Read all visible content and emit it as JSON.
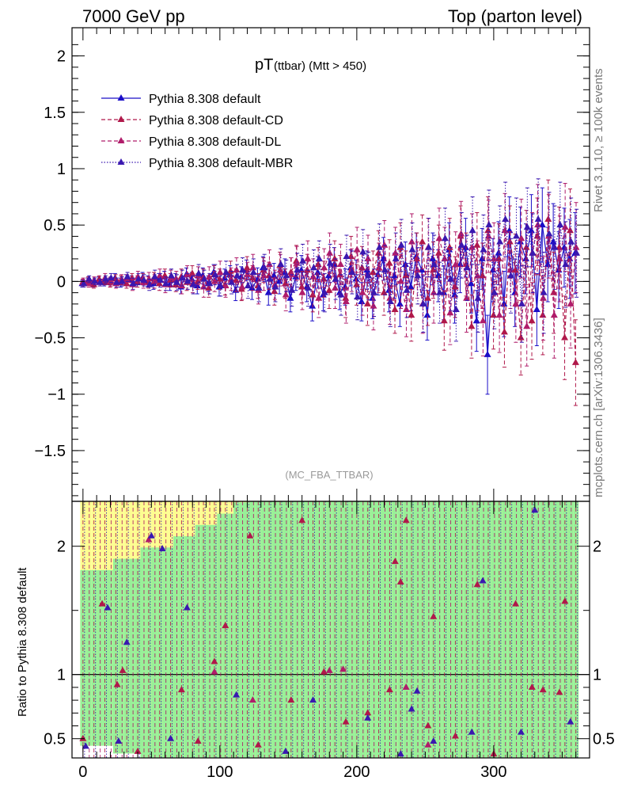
{
  "header": {
    "left": "7000 GeV pp",
    "right": "Top (parton level)"
  },
  "side_text": {
    "rivet": "Rivet 3.1.10, ≥ 100k events",
    "mcplots": "mcplots.cern.ch [arXiv:1306.3436]"
  },
  "colors": {
    "default": "#1a0dc8",
    "cd": "#b0184a",
    "dl": "#b01c6a",
    "mbr": "#3a18b0",
    "band_green": "#98f098",
    "band_yellow": "#fdfd90"
  },
  "chart_data": [
    {
      "type": "line",
      "title_main": "pT",
      "title_sub": "(ttbar) (Mtt > 450)",
      "watermark": "(MC_FBA_TTBAR)",
      "xlabel": "",
      "ylabel": "",
      "xlim": [
        -8,
        370
      ],
      "ylim": [
        -1.95,
        2.25
      ],
      "yticks": [
        -1.5,
        -1,
        -0.5,
        0,
        0.5,
        1,
        1.5,
        2
      ],
      "ytick_labels": [
        "−1.5",
        "−1",
        "−0.5",
        "0",
        "0.5",
        "1",
        "1.5",
        "2"
      ],
      "legend_position": "top-left",
      "x": [
        0,
        4,
        8,
        12,
        16,
        20,
        24,
        28,
        32,
        36,
        40,
        44,
        48,
        52,
        56,
        60,
        64,
        68,
        72,
        76,
        80,
        84,
        88,
        92,
        96,
        100,
        104,
        108,
        112,
        116,
        120,
        124,
        128,
        132,
        136,
        140,
        144,
        148,
        152,
        156,
        160,
        164,
        168,
        172,
        176,
        180,
        184,
        188,
        192,
        196,
        200,
        204,
        208,
        212,
        216,
        220,
        224,
        228,
        232,
        236,
        240,
        244,
        248,
        252,
        256,
        260,
        264,
        268,
        272,
        276,
        280,
        284,
        288,
        292,
        296,
        300,
        304,
        308,
        312,
        316,
        320,
        324,
        328,
        332,
        336,
        340,
        344,
        348,
        352,
        356,
        360
      ],
      "series": [
        {
          "name": "Pythia 8.308 default",
          "style": "solid",
          "values": [
            -0.02,
            0.0,
            -0.02,
            0.01,
            -0.01,
            0.0,
            0.03,
            -0.01,
            0.02,
            0.01,
            -0.01,
            0.03,
            0.0,
            -0.02,
            0.02,
            0.04,
            -0.03,
            0.01,
            -0.05,
            0.06,
            0.02,
            -0.04,
            0.05,
            -0.02,
            0.08,
            -0.05,
            0.03,
            0.06,
            -0.08,
            0.04,
            0.1,
            -0.06,
            0.02,
            0.12,
            -0.1,
            0.05,
            0.0,
            0.08,
            -0.15,
            0.04,
            0.1,
            -0.05,
            -0.22,
            0.08,
            -0.12,
            0.05,
            0.15,
            -0.1,
            -0.05,
            0.12,
            0.02,
            -0.18,
            0.1,
            -0.15,
            0.06,
            0.2,
            -0.08,
            0.05,
            -0.2,
            0.15,
            -0.05,
            0.22,
            0.1,
            -0.3,
            0.2,
            0.05,
            -0.1,
            0.28,
            -0.12,
            0.15,
            0.3,
            -0.02,
            -0.35,
            0.2,
            -0.65,
            0.1,
            0.25,
            -0.2,
            0.45,
            -0.1,
            0.35,
            0.2,
            0.45,
            -0.25,
            0.5,
            0.15,
            0.35,
            0.1,
            0.3,
            0.2,
            0.25
          ],
          "errors": [
            0.03,
            0.03,
            0.03,
            0.03,
            0.03,
            0.03,
            0.04,
            0.04,
            0.04,
            0.04,
            0.04,
            0.05,
            0.05,
            0.05,
            0.05,
            0.05,
            0.05,
            0.06,
            0.06,
            0.06,
            0.06,
            0.07,
            0.07,
            0.07,
            0.07,
            0.08,
            0.08,
            0.08,
            0.09,
            0.09,
            0.09,
            0.1,
            0.1,
            0.1,
            0.11,
            0.11,
            0.11,
            0.12,
            0.12,
            0.12,
            0.13,
            0.13,
            0.13,
            0.14,
            0.14,
            0.15,
            0.15,
            0.15,
            0.16,
            0.16,
            0.17,
            0.17,
            0.17,
            0.18,
            0.18,
            0.19,
            0.19,
            0.2,
            0.2,
            0.2,
            0.21,
            0.21,
            0.22,
            0.22,
            0.23,
            0.23,
            0.24,
            0.24,
            0.25,
            0.25,
            0.26,
            0.26,
            0.27,
            0.27,
            0.35,
            0.28,
            0.28,
            0.29,
            0.3,
            0.3,
            0.31,
            0.31,
            0.32,
            0.32,
            0.33,
            0.33,
            0.34,
            0.34,
            0.35,
            0.35,
            0.36
          ]
        },
        {
          "name": "Pythia 8.308 default-CD",
          "style": "dashed",
          "values": [
            -0.01,
            0.01,
            -0.03,
            0.02,
            0.0,
            -0.01,
            0.02,
            0.01,
            -0.02,
            0.03,
            0.0,
            0.02,
            -0.01,
            0.03,
            -0.02,
            0.05,
            0.01,
            -0.03,
            0.04,
            -0.01,
            0.07,
            0.0,
            0.03,
            -0.06,
            0.06,
            0.02,
            -0.03,
            0.09,
            0.01,
            -0.07,
            0.12,
            0.03,
            -0.04,
            0.1,
            0.05,
            -0.09,
            0.14,
            -0.02,
            0.08,
            0.18,
            -0.05,
            0.1,
            -0.12,
            0.15,
            0.02,
            -0.08,
            0.2,
            0.06,
            -0.15,
            0.22,
            -0.03,
            0.12,
            -0.2,
            0.08,
            0.25,
            -0.1,
            0.16,
            -0.25,
            0.3,
            0.05,
            -0.3,
            0.2,
            0.35,
            -0.15,
            0.1,
            0.25,
            -0.35,
            0.3,
            -0.05,
            0.4,
            0.15,
            -0.4,
            0.32,
            0.05,
            0.45,
            -0.3,
            0.2,
            -0.45,
            0.35,
            0.1,
            -0.5,
            0.3,
            -0.35,
            0.4,
            -0.3,
            0.55,
            -0.1,
            0.3,
            -0.5,
            0.45,
            -0.72
          ],
          "errors": [
            0.03,
            0.03,
            0.03,
            0.03,
            0.03,
            0.04,
            0.04,
            0.04,
            0.04,
            0.04,
            0.05,
            0.05,
            0.05,
            0.05,
            0.06,
            0.06,
            0.06,
            0.06,
            0.07,
            0.07,
            0.07,
            0.07,
            0.08,
            0.08,
            0.08,
            0.09,
            0.09,
            0.09,
            0.1,
            0.1,
            0.1,
            0.11,
            0.11,
            0.11,
            0.12,
            0.12,
            0.12,
            0.13,
            0.13,
            0.14,
            0.14,
            0.14,
            0.15,
            0.15,
            0.16,
            0.16,
            0.16,
            0.17,
            0.17,
            0.18,
            0.18,
            0.19,
            0.19,
            0.19,
            0.2,
            0.2,
            0.21,
            0.21,
            0.22,
            0.22,
            0.23,
            0.23,
            0.24,
            0.24,
            0.25,
            0.25,
            0.26,
            0.26,
            0.27,
            0.27,
            0.28,
            0.28,
            0.29,
            0.29,
            0.3,
            0.3,
            0.31,
            0.31,
            0.32,
            0.32,
            0.33,
            0.33,
            0.34,
            0.34,
            0.35,
            0.35,
            0.36,
            0.36,
            0.37,
            0.37,
            0.38
          ]
        },
        {
          "name": "Pythia 8.308 default-DL",
          "style": "dashed",
          "values": [
            0.0,
            -0.02,
            0.01,
            -0.01,
            0.03,
            0.0,
            -0.02,
            0.02,
            0.01,
            -0.03,
            0.04,
            -0.01,
            0.02,
            0.0,
            0.05,
            -0.03,
            0.03,
            0.02,
            -0.04,
            0.06,
            -0.02,
            0.05,
            -0.05,
            0.04,
            0.0,
            0.08,
            -0.04,
            0.02,
            0.1,
            -0.05,
            0.06,
            0.12,
            -0.08,
            0.05,
            0.15,
            -0.03,
            0.1,
            -0.12,
            0.06,
            0.16,
            -0.1,
            0.2,
            0.04,
            -0.15,
            0.12,
            0.25,
            -0.06,
            0.15,
            -0.18,
            0.1,
            0.28,
            -0.1,
            0.2,
            -0.22,
            0.12,
            0.32,
            -0.15,
            0.25,
            0.0,
            -0.25,
            0.35,
            0.1,
            -0.2,
            0.3,
            -0.1,
            0.38,
            0.2,
            -0.28,
            0.15,
            0.42,
            -0.15,
            0.3,
            0.05,
            -0.35,
            0.4,
            0.2,
            -0.3,
            0.45,
            0.1,
            -0.2,
            0.38,
            -0.4,
            0.25,
            0.5,
            -0.15,
            0.4,
            -0.3,
            0.2,
            0.48,
            -0.2,
            0.3
          ],
          "errors": [
            0.03,
            0.03,
            0.03,
            0.03,
            0.04,
            0.04,
            0.04,
            0.04,
            0.05,
            0.05,
            0.05,
            0.05,
            0.06,
            0.06,
            0.06,
            0.07,
            0.07,
            0.07,
            0.07,
            0.08,
            0.08,
            0.08,
            0.09,
            0.09,
            0.09,
            0.1,
            0.1,
            0.1,
            0.11,
            0.11,
            0.11,
            0.12,
            0.12,
            0.13,
            0.13,
            0.13,
            0.14,
            0.14,
            0.15,
            0.15,
            0.15,
            0.16,
            0.16,
            0.17,
            0.17,
            0.18,
            0.18,
            0.18,
            0.19,
            0.19,
            0.2,
            0.2,
            0.21,
            0.21,
            0.22,
            0.22,
            0.23,
            0.23,
            0.24,
            0.24,
            0.25,
            0.25,
            0.26,
            0.26,
            0.27,
            0.27,
            0.28,
            0.28,
            0.29,
            0.29,
            0.3,
            0.3,
            0.31,
            0.31,
            0.32,
            0.32,
            0.33,
            0.33,
            0.34,
            0.34,
            0.35,
            0.35,
            0.36,
            0.36,
            0.37,
            0.37,
            0.38,
            0.38,
            0.39,
            0.39,
            0.4
          ]
        },
        {
          "name": "Pythia 8.308 default-MBR",
          "style": "dotted",
          "values": [
            -0.02,
            0.02,
            0.0,
            -0.01,
            0.02,
            0.03,
            -0.01,
            0.0,
            0.04,
            -0.02,
            0.02,
            0.01,
            -0.03,
            0.04,
            0.01,
            -0.02,
            0.05,
            -0.01,
            0.03,
            0.0,
            -0.03,
            0.07,
            0.02,
            -0.02,
            0.06,
            -0.04,
            0.08,
            -0.01,
            0.05,
            0.1,
            -0.04,
            0.08,
            -0.06,
            0.12,
            0.02,
            -0.05,
            0.15,
            0.05,
            -0.08,
            0.1,
            0.18,
            -0.06,
            0.12,
            0.2,
            -0.1,
            0.16,
            0.02,
            -0.12,
            0.22,
            0.08,
            -0.14,
            0.26,
            0.05,
            -0.1,
            0.3,
            0.1,
            -0.18,
            0.2,
            0.32,
            -0.08,
            0.28,
            0.05,
            -0.2,
            0.3,
            0.15,
            -0.1,
            0.38,
            0.02,
            -0.25,
            0.32,
            0.12,
            0.45,
            -0.15,
            0.28,
            0.5,
            -0.1,
            0.35,
            0.55,
            0.05,
            0.4,
            -0.2,
            0.48,
            0.25,
            0.55,
            -0.1,
            0.42,
            0.3,
            0.5,
            0.15,
            0.35,
            0.25
          ],
          "errors": [
            0.03,
            0.03,
            0.03,
            0.03,
            0.03,
            0.04,
            0.04,
            0.04,
            0.04,
            0.05,
            0.05,
            0.05,
            0.05,
            0.06,
            0.06,
            0.06,
            0.06,
            0.07,
            0.07,
            0.07,
            0.08,
            0.08,
            0.08,
            0.09,
            0.09,
            0.09,
            0.1,
            0.1,
            0.1,
            0.11,
            0.11,
            0.12,
            0.12,
            0.12,
            0.13,
            0.13,
            0.14,
            0.14,
            0.14,
            0.15,
            0.15,
            0.16,
            0.16,
            0.16,
            0.17,
            0.17,
            0.18,
            0.18,
            0.19,
            0.19,
            0.2,
            0.2,
            0.21,
            0.21,
            0.21,
            0.22,
            0.22,
            0.23,
            0.23,
            0.24,
            0.24,
            0.25,
            0.25,
            0.26,
            0.26,
            0.27,
            0.27,
            0.28,
            0.28,
            0.29,
            0.29,
            0.3,
            0.3,
            0.31,
            0.31,
            0.32,
            0.32,
            0.33,
            0.33,
            0.34,
            0.34,
            0.35,
            0.35,
            0.36,
            0.36,
            0.37,
            0.37,
            0.38,
            0.38,
            0.39,
            0.39
          ]
        }
      ]
    },
    {
      "type": "line",
      "ylabel": "Ratio to Pythia 8.308 default",
      "xlabel": "",
      "xlim": [
        -8,
        370
      ],
      "ylim": [
        0.35,
        2.35
      ],
      "yticks": [
        0.5,
        1,
        2
      ],
      "ytick_labels": [
        "0.5",
        "1",
        "2"
      ],
      "xticks": [
        0,
        100,
        200,
        300
      ],
      "xtick_labels": [
        "0",
        "100",
        "200",
        "300"
      ],
      "reference_line": 1,
      "band_note": "green = default uncertainty band, yellow = extended band",
      "markers": [
        {
          "series": "Pythia 8.308 default-CD",
          "x": [
            0,
            14,
            25,
            29,
            40,
            72,
            84,
            96,
            104,
            122,
            128,
            152,
            160,
            176,
            192,
            208,
            224,
            228,
            232,
            236,
            252,
            256,
            272,
            288,
            300,
            316,
            328,
            336,
            348,
            352
          ],
          "y": [
            0.5,
            1.55,
            0.92,
            1.03,
            0.4,
            0.88,
            0.48,
            1.1,
            1.38,
            2.08,
            0.45,
            0.8,
            2.2,
            1.02,
            0.63,
            0.7,
            0.88,
            1.88,
            1.72,
            2.2,
            0.6,
            1.45,
            0.52,
            1.7,
            0.38,
            1.55,
            0.9,
            0.88,
            0.86,
            1.57
          ]
        },
        {
          "series": "Pythia 8.308 default-DL",
          "x": [
            48,
            96,
            124,
            180,
            190,
            236,
            252
          ],
          "y": [
            2.05,
            1.02,
            0.8,
            1.03,
            1.04,
            0.9,
            0.45
          ]
        },
        {
          "series": "Pythia 8.308 default-MBR",
          "x": [
            2,
            18,
            26,
            32,
            50,
            58,
            64,
            76,
            112,
            148,
            168,
            208,
            232,
            240,
            244,
            256,
            284,
            292,
            320,
            330,
            356
          ],
          "y": [
            0.44,
            1.52,
            0.48,
            1.25,
            2.08,
            1.98,
            0.5,
            1.52,
            0.84,
            0.4,
            0.8,
            0.66,
            0.38,
            0.73,
            0.87,
            0.48,
            0.55,
            1.73,
            0.55,
            2.28,
            0.63
          ]
        }
      ]
    }
  ]
}
